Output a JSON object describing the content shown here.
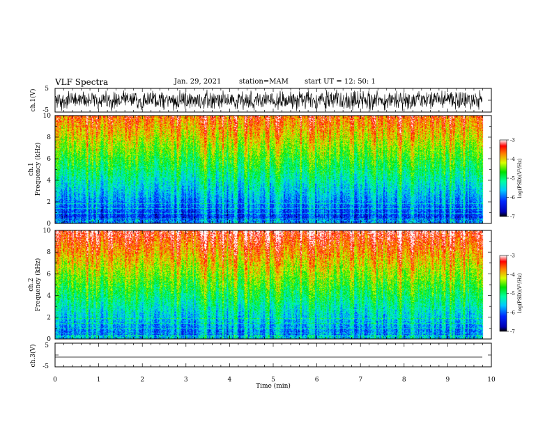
{
  "header": {
    "title": "VLF Spectra",
    "date": "Jan. 29, 2021",
    "station": "station=MAM",
    "start": "start UT = 12: 50: 1"
  },
  "chart_data": {
    "type": "heatmap",
    "xlabel": "Time (min)",
    "xlim": [
      0,
      10
    ],
    "xticks": [
      "0",
      "1",
      "2",
      "3",
      "4",
      "5",
      "6",
      "7",
      "8",
      "9",
      "10"
    ],
    "panels": [
      {
        "name": "ch.1 waveform",
        "type": "line",
        "ylabel": "ch.1(V)",
        "ylim": [
          -5,
          5
        ],
        "yticks": [
          "5",
          "-5"
        ],
        "pattern": "dense noisy oscillation clipped near ±5 V, ending at about 9.8 min"
      },
      {
        "name": "ch.1 spectrogram",
        "type": "heatmap",
        "ylabel_top": "ch.1",
        "ylabel": "Frequency (kHz)",
        "ylim": [
          0,
          10
        ],
        "yticks": [
          "0",
          "2",
          "4",
          "6",
          "8",
          "10"
        ],
        "colorbar": {
          "label": "log(PSD)(V²/Hz)",
          "range": [
            -7,
            -3
          ],
          "ticks": [
            "-3",
            "-4",
            "-5",
            "-6",
            "-7"
          ]
        },
        "pattern": "low power (blue) below ~3 kHz, rising through green/yellow to red near 10 kHz"
      },
      {
        "name": "ch.2 spectrogram",
        "type": "heatmap",
        "ylabel_top": "ch.2",
        "ylabel": "Frequency (kHz)",
        "ylim": [
          0,
          10
        ],
        "yticks": [
          "0",
          "2",
          "4",
          "6",
          "8",
          "10"
        ],
        "colorbar": {
          "label": "log(PSD)(V²/Hz)",
          "range": [
            -7,
            -3
          ],
          "ticks": [
            "-3",
            "-4",
            "-5",
            "-6",
            "-7"
          ]
        },
        "pattern": "higher power than ch.1; red above ~7 kHz, blue below ~3 kHz"
      },
      {
        "name": "ch.3 waveform",
        "type": "line",
        "ylabel": "ch.3(V)",
        "ylim": [
          -5,
          5
        ],
        "yticks": [
          "5",
          "-5"
        ],
        "pattern": "flat line near -1 V"
      }
    ]
  }
}
